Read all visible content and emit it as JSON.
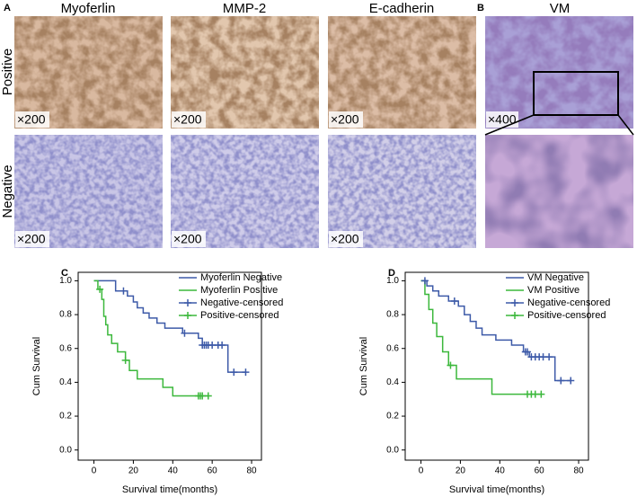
{
  "figure": {
    "panel_A": "A",
    "panel_B": "B",
    "columns": [
      "Myoferlin",
      "MMP-2",
      "E-cadherin",
      "VM"
    ],
    "rows": [
      "Positive",
      "Negative"
    ],
    "magnifications": [
      [
        "×200",
        "×200",
        "×200",
        "×400"
      ],
      [
        "×200",
        "×200",
        "×200"
      ]
    ]
  },
  "chart_data": [
    {
      "type": "line",
      "panel": "C",
      "xlabel": "Survival time(months)",
      "ylabel": "Cum Survival",
      "xlim": [
        -8,
        85
      ],
      "ylim": [
        -0.06,
        1.05
      ],
      "xticks": [
        0,
        20,
        40,
        60,
        80
      ],
      "yticks": [
        {
          "value": 0,
          "label": "0.0"
        },
        0.2,
        0.4,
        0.6,
        0.8,
        {
          "value": 1,
          "label": "1.0"
        }
      ],
      "legend": "upper right",
      "series": [
        {
          "name": "Myoferlin Negative",
          "color": "#3d5aa8",
          "mode": "lines",
          "x": [
            0,
            11,
            11,
            17,
            17,
            20,
            20,
            22,
            22,
            25,
            25,
            28,
            28,
            32,
            32,
            36,
            36,
            45,
            45,
            53,
            53,
            55,
            55,
            68,
            68,
            77
          ],
          "values": [
            1,
            1,
            0.94,
            0.94,
            0.91,
            0.91,
            0.875,
            0.875,
            0.84,
            0.84,
            0.81,
            0.81,
            0.78,
            0.78,
            0.75,
            0.75,
            0.72,
            0.72,
            0.69,
            0.69,
            0.66,
            0.66,
            0.62,
            0.62,
            0.46,
            0.46
          ]
        },
        {
          "name": "Myoferlin Positive",
          "color": "#3cb83c",
          "mode": "lines",
          "x": [
            0,
            2,
            2,
            4,
            4,
            5,
            5,
            6,
            6,
            7,
            7,
            9,
            9,
            12,
            12,
            16,
            16,
            18,
            18,
            22,
            22,
            35,
            35,
            40,
            40,
            58
          ],
          "values": [
            1,
            1,
            0.95,
            0.95,
            0.89,
            0.89,
            0.79,
            0.79,
            0.74,
            0.74,
            0.68,
            0.68,
            0.63,
            0.63,
            0.58,
            0.58,
            0.53,
            0.53,
            0.47,
            0.47,
            0.42,
            0.42,
            0.37,
            0.37,
            0.32,
            0.32
          ]
        },
        {
          "name": "Negative-censored",
          "color": "#3d5aa8",
          "mode": "markers",
          "x": [
            15,
            46,
            55,
            56,
            57,
            58,
            60,
            63,
            65,
            71,
            77
          ],
          "values": [
            0.94,
            0.69,
            0.62,
            0.62,
            0.62,
            0.62,
            0.62,
            0.62,
            0.62,
            0.46,
            0.46
          ]
        },
        {
          "name": "Positive-censored",
          "color": "#3cb83c",
          "mode": "markers",
          "x": [
            3,
            16,
            53,
            54,
            55,
            58
          ],
          "values": [
            0.95,
            0.53,
            0.32,
            0.32,
            0.32,
            0.32
          ]
        }
      ]
    },
    {
      "type": "line",
      "panel": "D",
      "xlabel": "Survival time(months)",
      "ylabel": "Cum Survival",
      "xlim": [
        -8,
        85
      ],
      "ylim": [
        -0.06,
        1.05
      ],
      "xticks": [
        0,
        20,
        40,
        60,
        80
      ],
      "yticks": [
        {
          "value": 0,
          "label": "0.0"
        },
        0.2,
        0.4,
        0.6,
        0.8,
        {
          "value": 1,
          "label": "1.0"
        }
      ],
      "legend": "upper right",
      "series": [
        {
          "name": "VM Negative",
          "color": "#3d5aa8",
          "mode": "lines",
          "x": [
            0,
            3,
            3,
            6,
            6,
            9,
            9,
            14,
            14,
            19,
            19,
            22,
            22,
            25,
            25,
            28,
            28,
            31,
            31,
            38,
            38,
            46,
            46,
            52,
            52,
            55,
            55,
            68,
            68,
            76
          ],
          "values": [
            1,
            1,
            0.97,
            0.97,
            0.94,
            0.94,
            0.91,
            0.91,
            0.88,
            0.88,
            0.85,
            0.85,
            0.8,
            0.8,
            0.76,
            0.76,
            0.72,
            0.72,
            0.68,
            0.68,
            0.65,
            0.65,
            0.62,
            0.62,
            0.58,
            0.58,
            0.55,
            0.55,
            0.41,
            0.41
          ]
        },
        {
          "name": "VM Positive",
          "color": "#3cb83c",
          "mode": "lines",
          "x": [
            0,
            2,
            2,
            4,
            4,
            6,
            6,
            8,
            8,
            11,
            11,
            14,
            14,
            18,
            18,
            36,
            36,
            61
          ],
          "values": [
            1,
            1,
            0.92,
            0.92,
            0.83,
            0.83,
            0.75,
            0.75,
            0.67,
            0.67,
            0.58,
            0.58,
            0.5,
            0.5,
            0.42,
            0.42,
            0.33,
            0.33
          ]
        },
        {
          "name": "Negative-censored",
          "color": "#3d5aa8",
          "mode": "markers",
          "x": [
            2,
            17,
            53,
            54,
            56,
            58,
            60,
            62,
            65,
            71,
            76
          ],
          "values": [
            1,
            0.88,
            0.58,
            0.58,
            0.55,
            0.55,
            0.55,
            0.55,
            0.55,
            0.41,
            0.41
          ]
        },
        {
          "name": "Positive-censored",
          "color": "#3cb83c",
          "mode": "markers",
          "x": [
            15,
            54,
            56,
            58,
            61
          ],
          "values": [
            0.5,
            0.33,
            0.33,
            0.33,
            0.33
          ]
        }
      ]
    }
  ]
}
